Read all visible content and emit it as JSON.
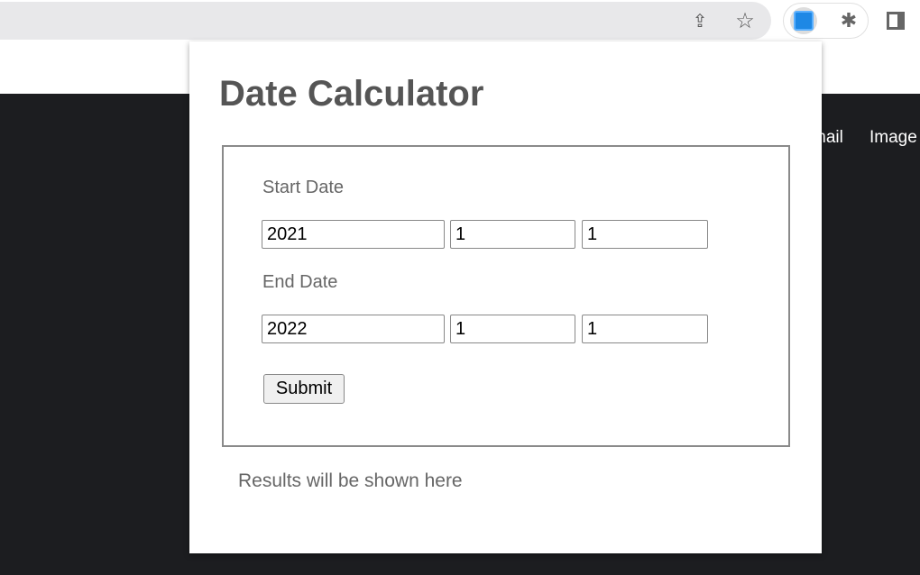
{
  "browser": {
    "nav_links": [
      "mail",
      "Image"
    ],
    "icons": [
      "share-icon",
      "star-icon",
      "calendar-extension-icon",
      "puzzle-icon",
      "sidepanel-icon"
    ],
    "accent": "#1e88e5"
  },
  "popup": {
    "title": "Date Calculator",
    "start": {
      "label": "Start Date",
      "year": "2021",
      "month": "1",
      "day": "1"
    },
    "end": {
      "label": "End Date",
      "year": "2022",
      "month": "1",
      "day": "1"
    },
    "submit_label": "Submit",
    "result_text": "Results will be shown here"
  }
}
